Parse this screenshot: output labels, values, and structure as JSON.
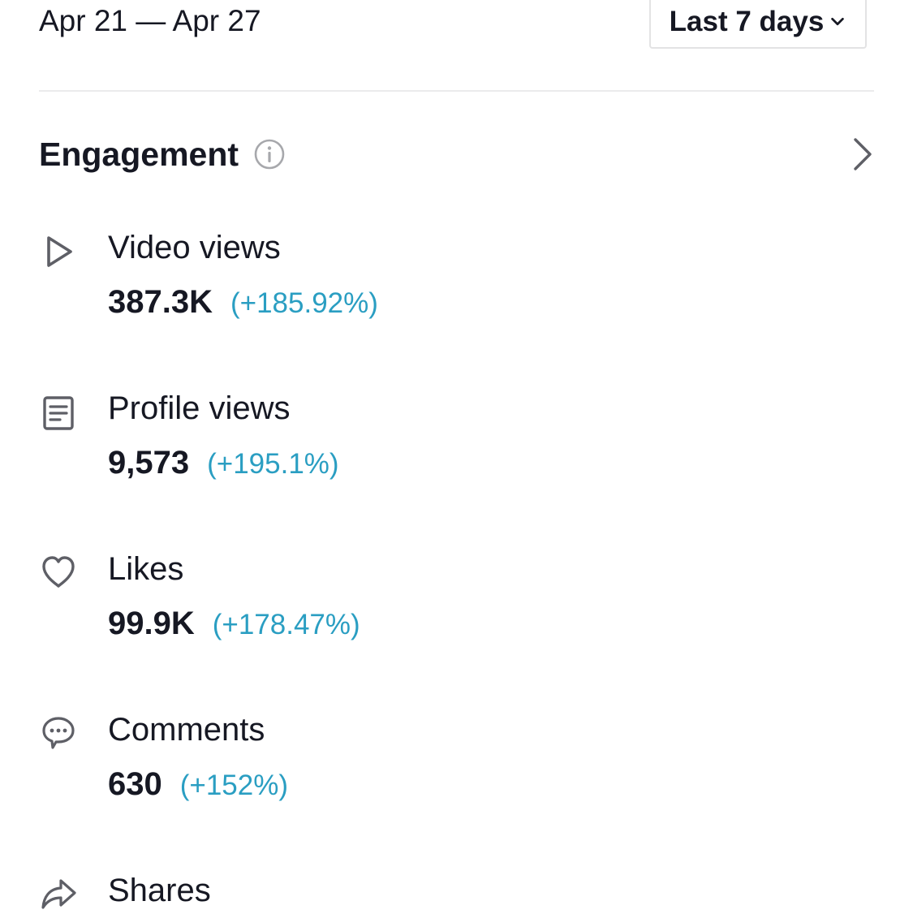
{
  "header": {
    "date_range": "Apr 21 — Apr 27",
    "range_select": {
      "value": "Last 7 days",
      "icon": "chevron-down-icon"
    }
  },
  "section": {
    "title": "Engagement",
    "info_icon": "info-icon",
    "chevron_icon": "chevron-right-icon"
  },
  "metrics": [
    {
      "icon": "play-icon",
      "label": "Video views",
      "value": "387.3K",
      "change": "(+185.92%)"
    },
    {
      "icon": "profile-icon",
      "label": "Profile views",
      "value": "9,573",
      "change": "(+195.1%)"
    },
    {
      "icon": "heart-icon",
      "label": "Likes",
      "value": "99.9K",
      "change": "(+178.47%)"
    },
    {
      "icon": "comment-icon",
      "label": "Comments",
      "value": "630",
      "change": "(+152%)"
    },
    {
      "icon": "share-icon",
      "label": "Shares"
    }
  ],
  "colors": {
    "text": "#161823",
    "change_positive": "#2a9ec2",
    "icon_gray": "#5e5f66",
    "divider": "#ebebec"
  }
}
